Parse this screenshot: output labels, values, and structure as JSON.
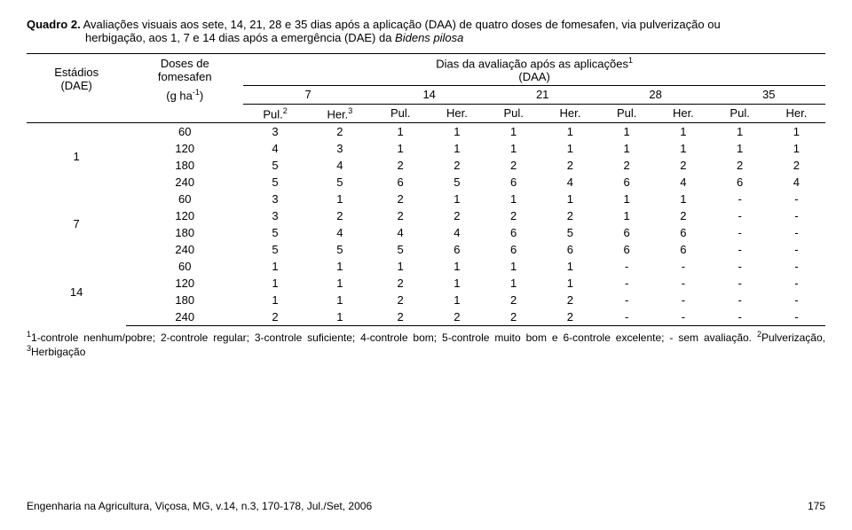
{
  "caption": {
    "label": "Quadro 2.",
    "line1": "Avaliações visuais aos sete, 14, 21, 28 e 35 dias após a aplicação (DAA) de quatro doses de fomesafen, via pulverização ou",
    "line2": "herbigação, aos 1, 7 e 14 dias após a emergência (DAE) da ",
    "species": "Bidens pilosa"
  },
  "headers": {
    "col1_line1": "Estádios",
    "col1_line2": "(DAE)",
    "col2_line1": "Doses de",
    "col2_line2": "fomesafen",
    "col2_line3_a": "(g ha",
    "col2_line3_sup": "-1",
    "col2_line3_b": ")",
    "span_title_a": "Dias da avaliação após as aplicações",
    "span_title_sup": "1",
    "span_title_b": "(DAA)",
    "days": [
      "7",
      "14",
      "21",
      "28",
      "35"
    ],
    "sub_a": "Pul.",
    "sub_a_sup": "2",
    "sub_b": "Her.",
    "sub_b_sup": "3",
    "sub_pul": "Pul.",
    "sub_her": "Her."
  },
  "groups": [
    {
      "stage": "1",
      "rows": [
        {
          "dose": "60",
          "v": [
            "3",
            "2",
            "1",
            "1",
            "1",
            "1",
            "1",
            "1",
            "1",
            "1"
          ]
        },
        {
          "dose": "120",
          "v": [
            "4",
            "3",
            "1",
            "1",
            "1",
            "1",
            "1",
            "1",
            "1",
            "1"
          ]
        },
        {
          "dose": "180",
          "v": [
            "5",
            "4",
            "2",
            "2",
            "2",
            "2",
            "2",
            "2",
            "2",
            "2"
          ]
        },
        {
          "dose": "240",
          "v": [
            "5",
            "5",
            "6",
            "5",
            "6",
            "4",
            "6",
            "4",
            "6",
            "4"
          ]
        }
      ]
    },
    {
      "stage": "7",
      "rows": [
        {
          "dose": "60",
          "v": [
            "3",
            "1",
            "2",
            "1",
            "1",
            "1",
            "1",
            "1",
            "-",
            "-"
          ]
        },
        {
          "dose": "120",
          "v": [
            "3",
            "2",
            "2",
            "2",
            "2",
            "2",
            "1",
            "2",
            "-",
            "-"
          ]
        },
        {
          "dose": "180",
          "v": [
            "5",
            "4",
            "4",
            "4",
            "6",
            "5",
            "6",
            "6",
            "-",
            "-"
          ]
        },
        {
          "dose": "240",
          "v": [
            "5",
            "5",
            "5",
            "6",
            "6",
            "6",
            "6",
            "6",
            "-",
            "-"
          ]
        }
      ]
    },
    {
      "stage": "14",
      "rows": [
        {
          "dose": "60",
          "v": [
            "1",
            "1",
            "1",
            "1",
            "1",
            "1",
            "-",
            "-",
            "-",
            "-"
          ]
        },
        {
          "dose": "120",
          "v": [
            "1",
            "1",
            "2",
            "1",
            "1",
            "1",
            "-",
            "-",
            "-",
            "-"
          ]
        },
        {
          "dose": "180",
          "v": [
            "1",
            "1",
            "2",
            "1",
            "2",
            "2",
            "-",
            "-",
            "-",
            "-"
          ]
        },
        {
          "dose": "240",
          "v": [
            "2",
            "1",
            "2",
            "2",
            "2",
            "2",
            "-",
            "-",
            "-",
            "-"
          ]
        }
      ]
    }
  ],
  "footnote": {
    "sup1": "1",
    "text1": "1-controle nenhum/pobre; 2-controle regular; 3-controle suficiente; 4-controle bom; 5-controle muito bom e 6-controle excelente; - sem avaliação. ",
    "sup2": "2",
    "text2": "Pulverização, ",
    "sup3": "3",
    "text3": "Herbigação"
  },
  "footer": {
    "ref": "Engenharia na Agricultura, Viçosa, MG, v.14, n.3, 170-178, Jul./Set, 2006",
    "page": "175"
  }
}
